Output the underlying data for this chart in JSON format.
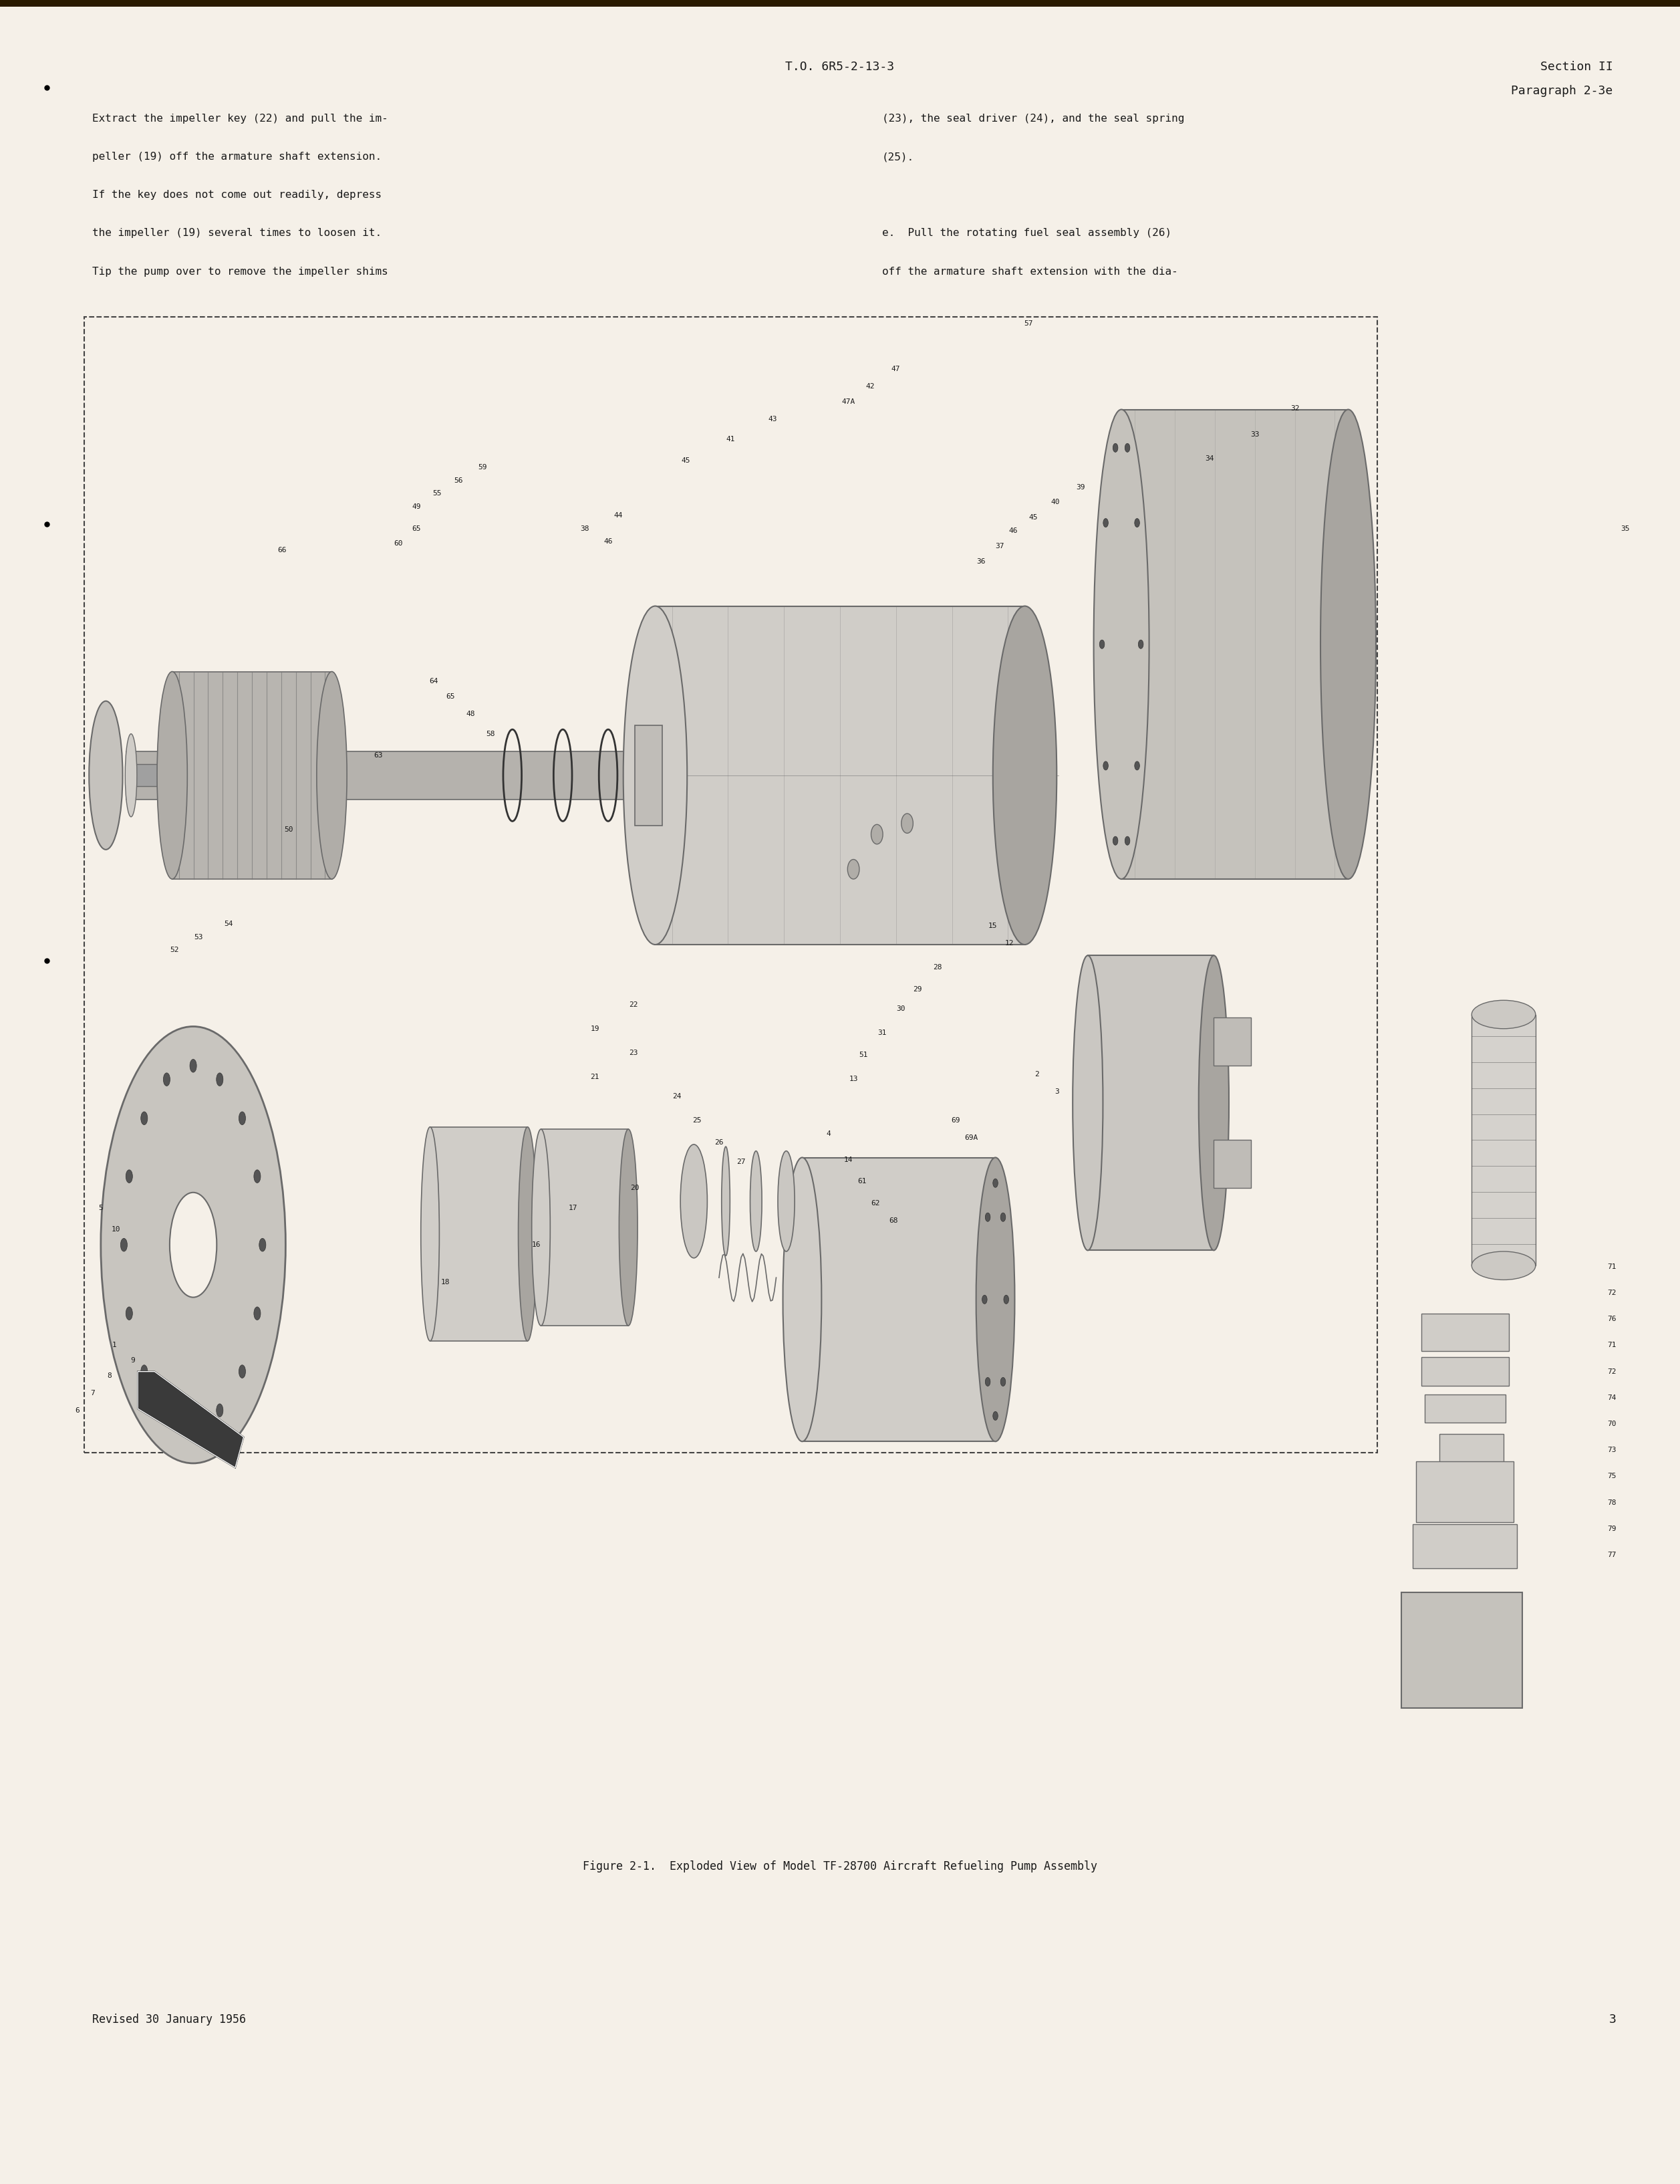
{
  "page_background": "#f5f0e8",
  "page_width": 25.14,
  "page_height": 32.67,
  "header_doc_number": "T.O. 6R5-2-13-3",
  "header_section": "Section II",
  "header_paragraph": "Paragraph 2-3e",
  "body_text_left_col": [
    "Extract the impeller key (22) and pull the im-",
    "peller (19) off the armature shaft extension.",
    "If the key does not come out readily, depress",
    "the impeller (19) several times to loosen it.",
    "Tip the pump over to remove the impeller shims"
  ],
  "body_text_right_col": [
    "(23), the seal driver (24), and the seal spring",
    "(25).",
    "",
    "e.  Pull the rotating fuel seal assembly (26)",
    "off the armature shaft extension with the dia-"
  ],
  "figure_caption": "Figure 2-1.  Exploded View of Model TF-28700 Aircraft Refueling Pump Assembly",
  "footer_text": "Revised 30 January 1956",
  "footer_page_number": "3",
  "text_color": "#1a1a1a",
  "gray_light": "#d0cdc8",
  "gray_med": "#a8a5a0",
  "gray_dark": "#6a6a6a",
  "black": "#1a1a1a"
}
